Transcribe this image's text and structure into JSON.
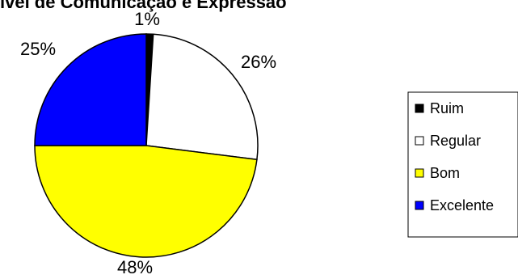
{
  "chart_data": {
    "type": "pie",
    "title": "ível de Comunicação e Expressão",
    "categories": [
      "Ruim",
      "Regular",
      "Bom",
      "Excelente"
    ],
    "values": [
      1,
      26,
      48,
      25
    ],
    "value_labels": [
      "1%",
      "26%",
      "48%",
      "25%"
    ],
    "colors": [
      "#000000",
      "#ffffff",
      "#ffff00",
      "#0000ff"
    ],
    "legend": {
      "placement": "right",
      "entries": [
        "Ruim",
        "Regular",
        "Bom",
        "Excelente"
      ]
    }
  }
}
